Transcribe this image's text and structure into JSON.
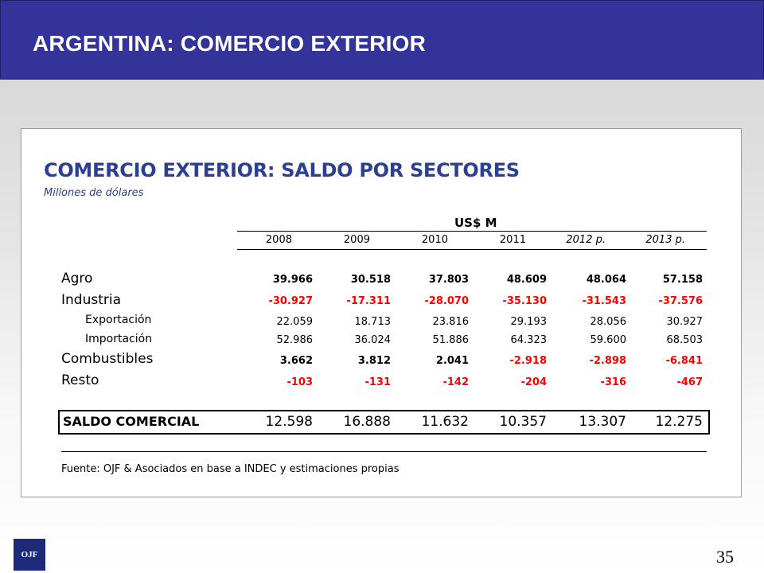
{
  "header": {
    "title": "ARGENTINA:  COMERCIO EXTERIOR"
  },
  "panel": {
    "title": "COMERCIO EXTERIOR: SALDO POR SECTORES",
    "subtitle": "Millones de dólares",
    "unit_label": "US$ M",
    "years": [
      "2008",
      "2009",
      "2010",
      "2011",
      "2012 p.",
      "2013 p."
    ],
    "rows": [
      {
        "label": "Agro",
        "values": [
          "39.966",
          "30.518",
          "37.803",
          "48.609",
          "48.064",
          "57.158"
        ]
      },
      {
        "label": "Industria",
        "values": [
          "-30.927",
          "-17.311",
          "-28.070",
          "-35.130",
          "-31.543",
          "-37.576"
        ]
      },
      {
        "label": "Exportación",
        "values": [
          "22.059",
          "18.713",
          "23.816",
          "29.193",
          "28.056",
          "30.927"
        ]
      },
      {
        "label": "Importación",
        "values": [
          "52.986",
          "36.024",
          "51.886",
          "64.323",
          "59.600",
          "68.503"
        ]
      },
      {
        "label": "Combustibles",
        "values": [
          "3.662",
          "3.812",
          "2.041",
          "-2.918",
          "-2.898",
          "-6.841"
        ]
      },
      {
        "label": "Resto",
        "values": [
          "-103",
          "-131",
          "-142",
          "-204",
          "-316",
          "-467"
        ]
      }
    ],
    "total": {
      "label": "SALDO COMERCIAL",
      "values": [
        "12.598",
        "16.888",
        "11.632",
        "10.357",
        "13.307",
        "12.275"
      ]
    },
    "source": "Fuente: OJF & Asociados en base a INDEC y estimaciones propias"
  },
  "colors": {
    "header_bg": "#333399",
    "title_text": "#2b3f94",
    "negative": "#ff0000"
  },
  "footer": {
    "logo": "OJF",
    "page_number": "35"
  }
}
